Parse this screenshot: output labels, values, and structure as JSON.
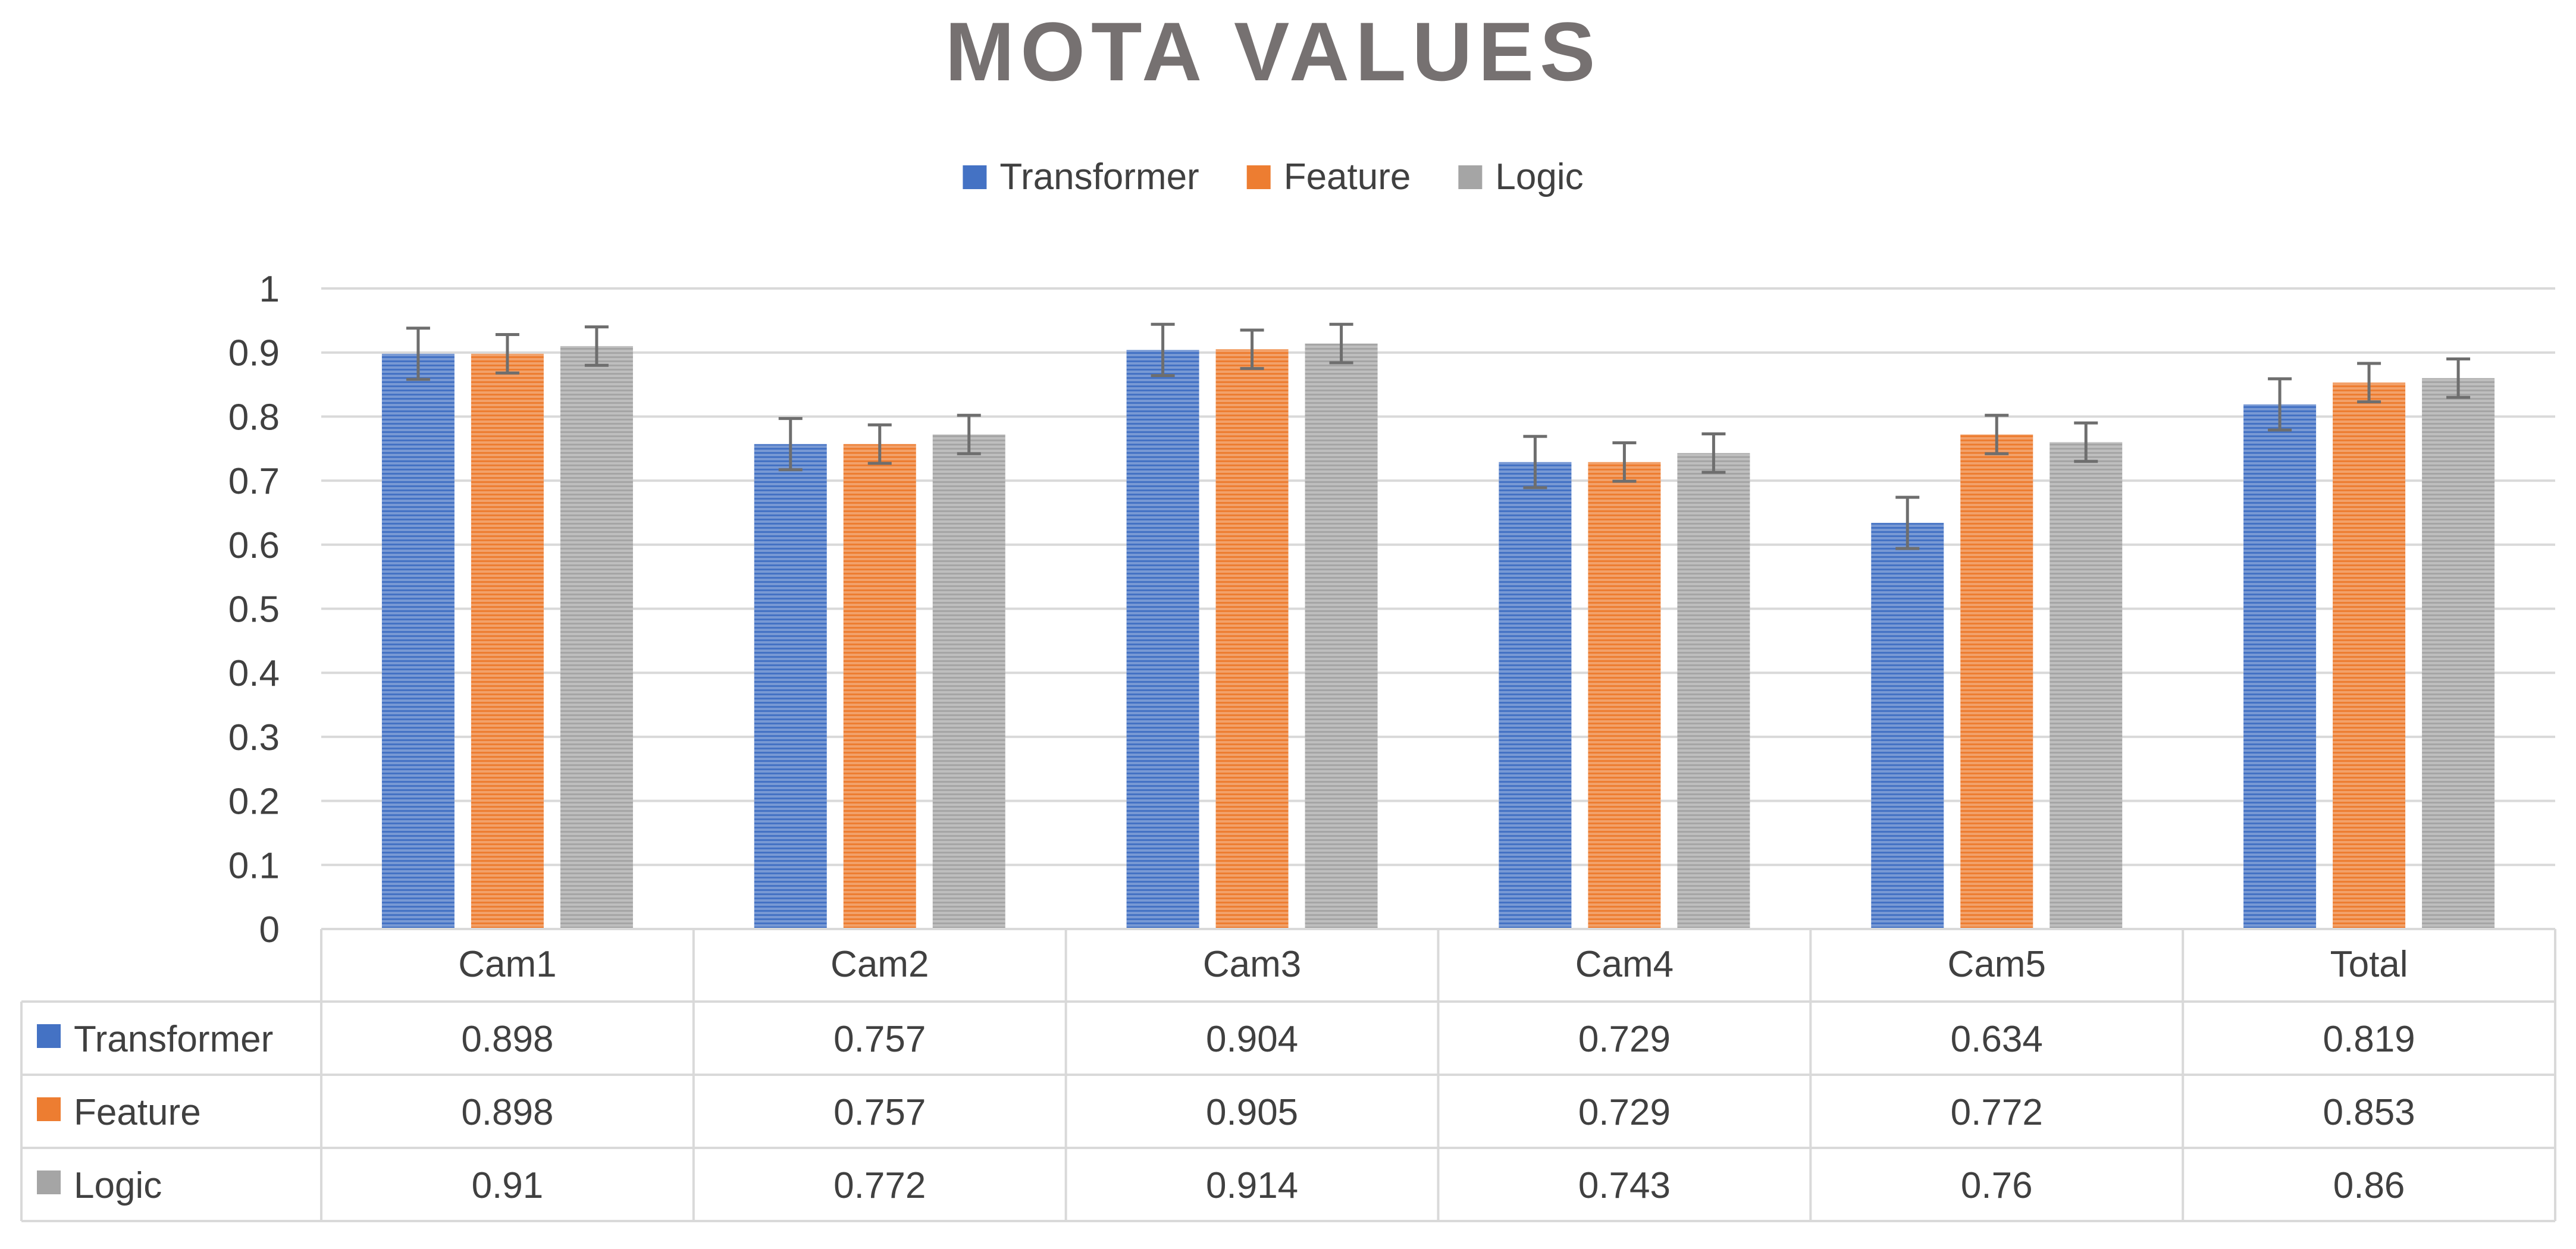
{
  "chart_data": {
    "type": "bar",
    "title": "MOTA VALUES",
    "categories": [
      "Cam1",
      "Cam2",
      "Cam3",
      "Cam4",
      "Cam5",
      "Total"
    ],
    "series": [
      {
        "name": "Transformer",
        "color": "#4472C4",
        "values": [
          0.898,
          0.757,
          0.904,
          0.729,
          0.634,
          0.819
        ],
        "error": 0.04
      },
      {
        "name": "Feature",
        "color": "#ED7D31",
        "values": [
          0.898,
          0.757,
          0.905,
          0.729,
          0.772,
          0.853
        ],
        "error": 0.03
      },
      {
        "name": "Logic",
        "color": "#A5A5A5",
        "values": [
          0.91,
          0.772,
          0.914,
          0.743,
          0.76,
          0.86
        ],
        "error": 0.03
      }
    ],
    "ylim": [
      0,
      1
    ],
    "yticks": [
      "0",
      "0.1",
      "0.2",
      "0.3",
      "0.4",
      "0.5",
      "0.6",
      "0.7",
      "0.8",
      "0.9",
      "1"
    ],
    "table": {
      "rows": [
        {
          "label": "Transformer",
          "cells": [
            "0.898",
            "0.757",
            "0.904",
            "0.729",
            "0.634",
            "0.819"
          ]
        },
        {
          "label": "Feature",
          "cells": [
            "0.898",
            "0.757",
            "0.905",
            "0.729",
            "0.772",
            "0.853"
          ]
        },
        {
          "label": "Logic",
          "cells": [
            "0.91",
            "0.772",
            "0.914",
            "0.743",
            "0.76",
            "0.86"
          ]
        }
      ]
    },
    "legend": {
      "position": "top-center",
      "items": [
        "Transformer",
        "Feature",
        "Logic"
      ]
    },
    "colors": {
      "grid": "#D9D9D9",
      "title": "#767171",
      "text": "#404040",
      "errorbar": "#6E6E6E"
    }
  }
}
